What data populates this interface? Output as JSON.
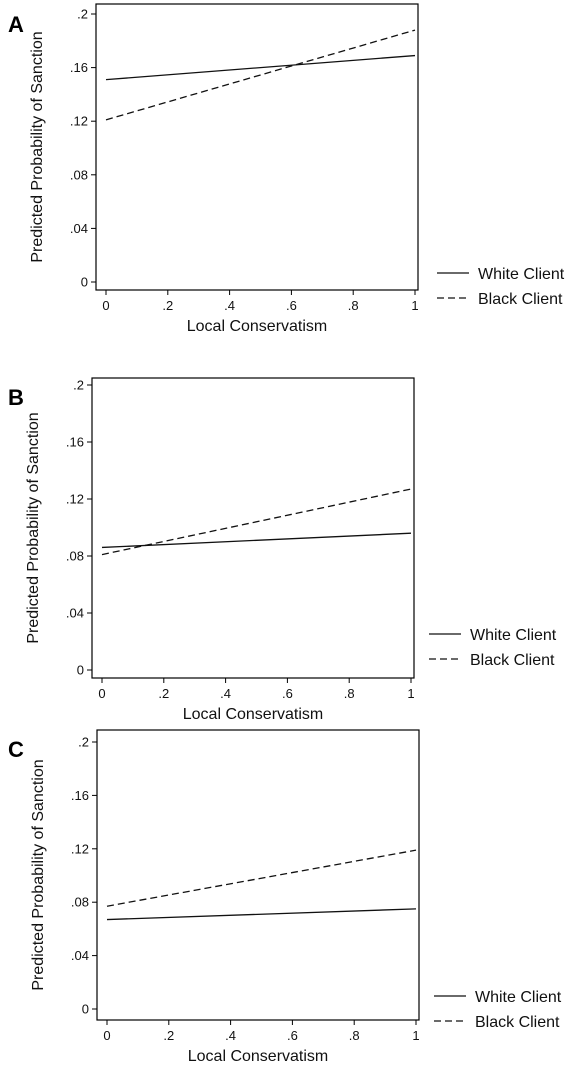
{
  "chart_data": [
    {
      "type": "line",
      "panel_label": "A",
      "xlabel": "Local Conservatism",
      "ylabel": "Predicted Probability of Sanction",
      "xlim": [
        0,
        1
      ],
      "ylim": [
        0,
        0.2
      ],
      "x_ticks": [
        "0",
        ".2",
        ".4",
        ".6",
        ".8",
        "1"
      ],
      "y_ticks": [
        "0",
        ".04",
        ".08",
        ".12",
        ".16",
        ".2"
      ],
      "legend_position": "right",
      "series": [
        {
          "name": "White Client",
          "style": "solid",
          "x": [
            0,
            1
          ],
          "y": [
            0.151,
            0.169
          ]
        },
        {
          "name": "Black Client",
          "style": "dashed",
          "x": [
            0,
            1
          ],
          "y": [
            0.121,
            0.188
          ]
        }
      ]
    },
    {
      "type": "line",
      "panel_label": "B",
      "xlabel": "Local Conservatism",
      "ylabel": "Predicted Probability of Sanction",
      "xlim": [
        0,
        1
      ],
      "ylim": [
        0,
        0.2
      ],
      "x_ticks": [
        "0",
        ".2",
        ".4",
        ".6",
        ".8",
        "1"
      ],
      "y_ticks": [
        "0",
        ".04",
        ".08",
        ".12",
        ".16",
        ".2"
      ],
      "legend_position": "right",
      "series": [
        {
          "name": "White Client",
          "style": "solid",
          "x": [
            0,
            1
          ],
          "y": [
            0.086,
            0.096
          ]
        },
        {
          "name": "Black Client",
          "style": "dashed",
          "x": [
            0,
            1
          ],
          "y": [
            0.081,
            0.127
          ]
        }
      ]
    },
    {
      "type": "line",
      "panel_label": "C",
      "xlabel": "Local Conservatism",
      "ylabel": "Predicted Probability of Sanction",
      "xlim": [
        0,
        1
      ],
      "ylim": [
        0,
        0.2
      ],
      "x_ticks": [
        "0",
        ".2",
        ".4",
        ".6",
        ".8",
        "1"
      ],
      "y_ticks": [
        "0",
        ".04",
        ".08",
        ".12",
        ".16",
        ".2"
      ],
      "legend_position": "right",
      "series": [
        {
          "name": "White Client",
          "style": "solid",
          "x": [
            0,
            1
          ],
          "y": [
            0.067,
            0.075
          ]
        },
        {
          "name": "Black Client",
          "style": "dashed",
          "x": [
            0,
            1
          ],
          "y": [
            0.077,
            0.119
          ]
        }
      ]
    }
  ]
}
